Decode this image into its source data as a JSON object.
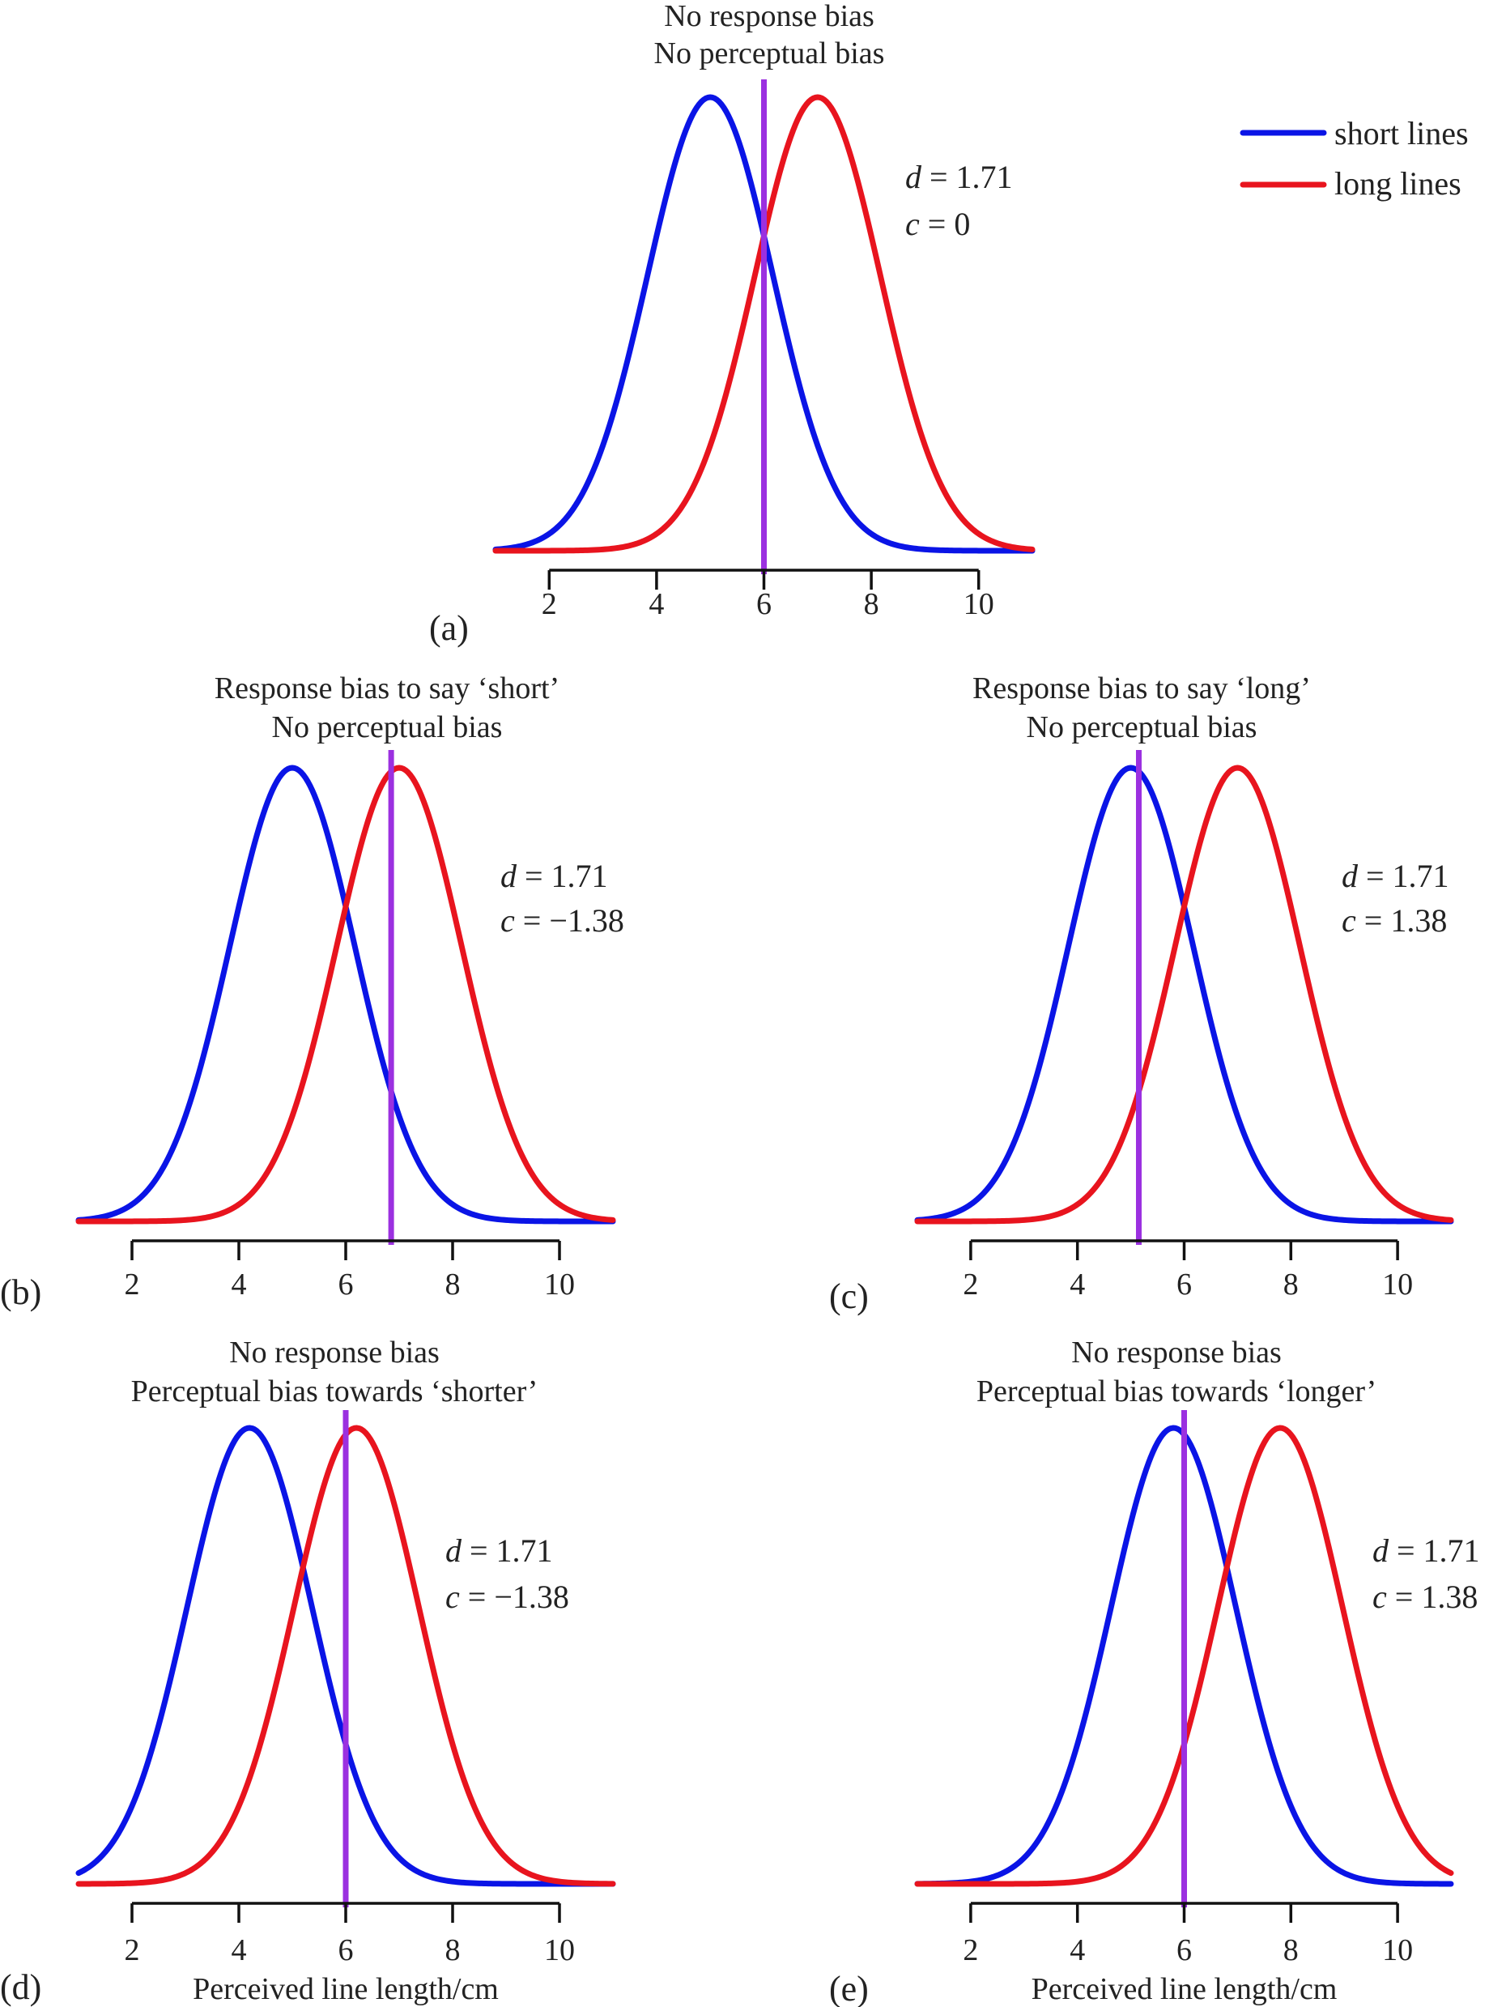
{
  "figure": {
    "legend": {
      "placement": "top-right",
      "items": [
        {
          "label": "short lines",
          "color": "#0a14e6"
        },
        {
          "label": "long lines",
          "color": "#e8141e"
        }
      ]
    }
  },
  "chart_data": [
    {
      "id": "a",
      "type": "line",
      "panel_label": "(a)",
      "title_lines": [
        "No response bias",
        "No perceptual bias"
      ],
      "xlabel": "",
      "xlim": [
        1,
        11
      ],
      "xticks": [
        2,
        4,
        6,
        8,
        10
      ],
      "series": [
        {
          "name": "short lines",
          "mean": 5,
          "sd": 1.17,
          "color": "#0a14e6"
        },
        {
          "name": "long lines",
          "mean": 7,
          "sd": 1.17,
          "color": "#e8141e"
        }
      ],
      "criterion": 6,
      "criterion_color": "#9b30e0",
      "stats": [
        {
          "sym": "d",
          "val": " = 1.71"
        },
        {
          "sym": "c",
          "val": " = 0"
        }
      ]
    },
    {
      "id": "b",
      "type": "line",
      "panel_label": "(b)",
      "title_lines": [
        "Response bias to say ‘short’",
        "No perceptual bias"
      ],
      "xlabel": "",
      "xlim": [
        1,
        11
      ],
      "xticks": [
        2,
        4,
        6,
        8,
        10
      ],
      "series": [
        {
          "name": "short lines",
          "mean": 5,
          "sd": 1.17,
          "color": "#0a14e6"
        },
        {
          "name": "long lines",
          "mean": 7,
          "sd": 1.17,
          "color": "#e8141e"
        }
      ],
      "criterion": 6.85,
      "criterion_color": "#9b30e0",
      "stats": [
        {
          "sym": "d",
          "val": " = 1.71"
        },
        {
          "sym": "c",
          "val": " = −1.38"
        }
      ]
    },
    {
      "id": "c",
      "type": "line",
      "panel_label": "(c)",
      "title_lines": [
        "Response bias to say ‘long’",
        "No perceptual bias"
      ],
      "xlabel": "",
      "xlim": [
        1,
        11
      ],
      "xticks": [
        2,
        4,
        6,
        8,
        10
      ],
      "series": [
        {
          "name": "short lines",
          "mean": 5,
          "sd": 1.17,
          "color": "#0a14e6"
        },
        {
          "name": "long lines",
          "mean": 7,
          "sd": 1.17,
          "color": "#e8141e"
        }
      ],
      "criterion": 5.15,
      "criterion_color": "#9b30e0",
      "stats": [
        {
          "sym": "d",
          "val": " = 1.71"
        },
        {
          "sym": "c",
          "val": " = 1.38"
        }
      ]
    },
    {
      "id": "d",
      "type": "line",
      "panel_label": "(d)",
      "title_lines": [
        "No response bias",
        "Perceptual bias towards ‘shorter’"
      ],
      "xlabel": "Perceived line length/cm",
      "xlim": [
        1,
        11
      ],
      "xticks": [
        2,
        4,
        6,
        8,
        10
      ],
      "series": [
        {
          "name": "short lines",
          "mean": 4.2,
          "sd": 1.17,
          "color": "#0a14e6"
        },
        {
          "name": "long lines",
          "mean": 6.2,
          "sd": 1.17,
          "color": "#e8141e"
        }
      ],
      "criterion": 6,
      "criterion_color": "#9b30e0",
      "stats": [
        {
          "sym": "d",
          "val": " = 1.71"
        },
        {
          "sym": "c",
          "val": " = −1.38"
        }
      ]
    },
    {
      "id": "e",
      "type": "line",
      "panel_label": "(e)",
      "title_lines": [
        "No response bias",
        "Perceptual bias towards ‘longer’"
      ],
      "xlabel": "Perceived line length/cm",
      "xlim": [
        1,
        11
      ],
      "xticks": [
        2,
        4,
        6,
        8,
        10
      ],
      "series": [
        {
          "name": "short lines",
          "mean": 5.8,
          "sd": 1.17,
          "color": "#0a14e6"
        },
        {
          "name": "long lines",
          "mean": 7.8,
          "sd": 1.17,
          "color": "#e8141e"
        }
      ],
      "criterion": 6,
      "criterion_color": "#9b30e0",
      "stats": [
        {
          "sym": "d",
          "val": " = 1.71"
        },
        {
          "sym": "c",
          "val": " = 1.38"
        }
      ]
    }
  ]
}
